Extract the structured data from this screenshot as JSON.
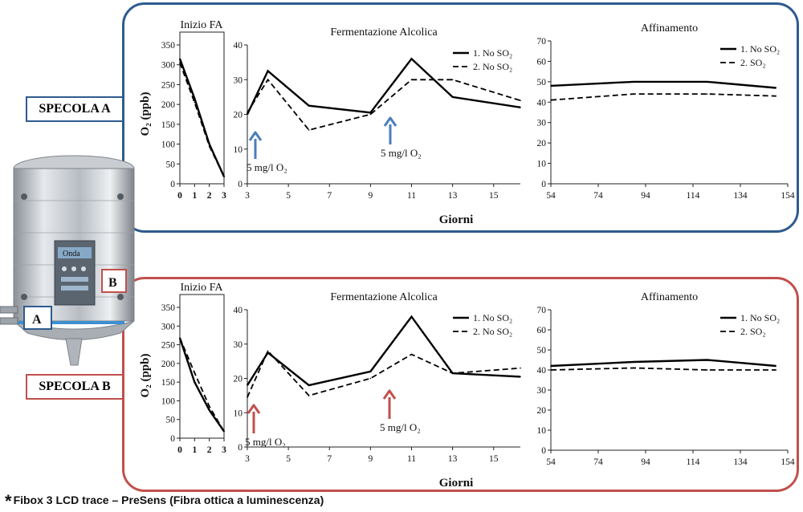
{
  "tags": {
    "a": "SPECOLA A",
    "b": "SPECOLA B"
  },
  "tank": {
    "brand": "Onda",
    "label_a": "A",
    "label_b": "B"
  },
  "footer": {
    "star": "*",
    "text": "Fibox 3 LCD trace – PreSens (Fibra ottica a luminescenza)"
  },
  "panels": [
    {
      "id": "a",
      "ylabel": "O₂ (ppb)",
      "xlabel": "Giorni",
      "arrow_color": "#4a7ebb",
      "annotations": [
        "5 mg/l O₂",
        "5 mg/l O₂"
      ],
      "charts": [
        {
          "title": "Inizio FA",
          "ylim": [
            0,
            350
          ],
          "yticks": [
            0,
            50,
            100,
            150,
            200,
            250,
            300,
            350
          ],
          "xticks": [
            0,
            1,
            2,
            3
          ],
          "xlim": [
            0,
            3
          ],
          "series": [
            {
              "style": "solid",
              "x": [
                0,
                1,
                2,
                3
              ],
              "y": [
                315,
                215,
                100,
                18
              ]
            },
            {
              "style": "dashed",
              "x": [
                0,
                1,
                2,
                3
              ],
              "y": [
                305,
                205,
                95,
                18
              ]
            }
          ]
        },
        {
          "title": "Fermentazione Alcolica",
          "ylim": [
            0,
            40
          ],
          "yticks": [
            0,
            10,
            20,
            30,
            40
          ],
          "xticks": [
            3,
            5,
            7,
            9,
            11,
            13,
            15
          ],
          "xlim": [
            3,
            16.3
          ],
          "legend": [
            "1. No SO₂",
            "2. No SO₂"
          ],
          "series": [
            {
              "style": "solid",
              "x": [
                3,
                4,
                6,
                9,
                11,
                13,
                16.3
              ],
              "y": [
                20,
                32.5,
                22.5,
                20.5,
                36,
                25,
                22
              ]
            },
            {
              "style": "dashed",
              "x": [
                3,
                4,
                6,
                9,
                11,
                13,
                16.3
              ],
              "y": [
                20.5,
                30,
                15.5,
                20,
                30,
                30,
                24
              ]
            }
          ]
        },
        {
          "title": "Affinamento",
          "ylim": [
            0,
            70
          ],
          "yticks": [
            0,
            10,
            20,
            30,
            40,
            50,
            60,
            70
          ],
          "xticks": [
            54,
            74,
            94,
            114,
            134,
            154
          ],
          "xlim": [
            54,
            154
          ],
          "legend": [
            "1. No SO₂",
            "2. SO₂"
          ],
          "series": [
            {
              "style": "solid",
              "x": [
                54,
                89,
                120,
                149
              ],
              "y": [
                48,
                50,
                50,
                47
              ]
            },
            {
              "style": "dashed",
              "x": [
                54,
                89,
                120,
                149
              ],
              "y": [
                41,
                44,
                44,
                43
              ]
            }
          ]
        }
      ]
    },
    {
      "id": "b",
      "ylabel": "O₂ (ppb)",
      "xlabel": "Giorni",
      "arrow_color": "#c0504d",
      "annotations": [
        "5 mg/l O₂",
        "5 mg/l O₂"
      ],
      "charts": [
        {
          "title": "Inizio FA",
          "ylim": [
            0,
            350
          ],
          "yticks": [
            0,
            50,
            100,
            150,
            200,
            250,
            300,
            350
          ],
          "xticks": [
            0,
            1,
            2,
            3
          ],
          "xlim": [
            0,
            3
          ],
          "series": [
            {
              "style": "solid",
              "x": [
                0,
                1,
                2,
                3
              ],
              "y": [
                268,
                150,
                75,
                18
              ]
            },
            {
              "style": "dashed",
              "x": [
                0,
                1,
                2,
                3
              ],
              "y": [
                268,
                175,
                85,
                18
              ]
            }
          ]
        },
        {
          "title": "Fermentazione Alcolica",
          "ylim": [
            0,
            40
          ],
          "yticks": [
            0,
            10,
            20,
            30,
            40
          ],
          "xticks": [
            3,
            5,
            7,
            9,
            11,
            13,
            15
          ],
          "xlim": [
            3,
            16.3
          ],
          "legend": [
            "1. No SO₂",
            "2. No SO₂"
          ],
          "series": [
            {
              "style": "solid",
              "x": [
                3,
                4,
                6,
                9,
                11,
                13,
                16.3
              ],
              "y": [
                18,
                27.5,
                18,
                22,
                38,
                21.5,
                20.5
              ]
            },
            {
              "style": "dashed",
              "x": [
                3,
                4,
                6,
                9,
                11,
                13,
                16.3
              ],
              "y": [
                14.5,
                28,
                15,
                20,
                27,
                21.5,
                23
              ]
            }
          ]
        },
        {
          "title": "Affinamento",
          "ylim": [
            0,
            70
          ],
          "yticks": [
            0,
            10,
            20,
            30,
            40,
            50,
            60,
            70
          ],
          "xticks": [
            54,
            74,
            94,
            114,
            134,
            154
          ],
          "xlim": [
            54,
            154
          ],
          "legend": [
            "1. No SO₂",
            "2. SO₂"
          ],
          "series": [
            {
              "style": "solid",
              "x": [
                54,
                89,
                120,
                149
              ],
              "y": [
                42,
                44,
                45,
                42
              ]
            },
            {
              "style": "dashed",
              "x": [
                54,
                89,
                120,
                149
              ],
              "y": [
                40,
                41,
                40,
                40
              ]
            }
          ]
        }
      ]
    }
  ],
  "chart_data": [
    {
      "type": "line",
      "title": "Inizio FA",
      "ylabel": "O₂ (ppb)",
      "xlim": [
        0,
        3
      ],
      "ylim": [
        0,
        350
      ],
      "x": [
        0,
        1,
        2,
        3
      ],
      "series": [
        {
          "values": [
            315,
            215,
            100,
            18
          ]
        },
        {
          "values": [
            305,
            205,
            95,
            18
          ]
        }
      ]
    },
    {
      "type": "line",
      "title": "Fermentazione Alcolica",
      "xlabel": "Giorni",
      "xlim": [
        3,
        16.3
      ],
      "ylim": [
        0,
        40
      ],
      "x": [
        3,
        4,
        6,
        9,
        11,
        13,
        16.3
      ],
      "series": [
        {
          "name": "1. No SO₂",
          "values": [
            20,
            32.5,
            22.5,
            20.5,
            36,
            25,
            22
          ]
        },
        {
          "name": "2. No SO₂",
          "values": [
            20.5,
            30,
            15.5,
            20,
            30,
            30,
            24
          ]
        }
      ]
    },
    {
      "type": "line",
      "title": "Affinamento",
      "xlim": [
        54,
        154
      ],
      "ylim": [
        0,
        70
      ],
      "x": [
        54,
        89,
        120,
        149
      ],
      "series": [
        {
          "name": "1. No SO₂",
          "values": [
            48,
            50,
            50,
            47
          ]
        },
        {
          "name": "2. SO₂",
          "values": [
            41,
            44,
            44,
            43
          ]
        }
      ]
    },
    {
      "type": "line",
      "title": "Inizio FA",
      "ylabel": "O₂ (ppb)",
      "xlim": [
        0,
        3
      ],
      "ylim": [
        0,
        350
      ],
      "x": [
        0,
        1,
        2,
        3
      ],
      "series": [
        {
          "values": [
            268,
            150,
            75,
            18
          ]
        },
        {
          "values": [
            268,
            175,
            85,
            18
          ]
        }
      ]
    },
    {
      "type": "line",
      "title": "Fermentazione Alcolica",
      "xlabel": "Giorni",
      "xlim": [
        3,
        16.3
      ],
      "ylim": [
        0,
        40
      ],
      "x": [
        3,
        4,
        6,
        9,
        11,
        13,
        16.3
      ],
      "series": [
        {
          "name": "1. No SO₂",
          "values": [
            18,
            27.5,
            18,
            22,
            38,
            21.5,
            20.5
          ]
        },
        {
          "name": "2. No SO₂",
          "values": [
            14.5,
            28,
            15,
            20,
            27,
            21.5,
            23
          ]
        }
      ]
    },
    {
      "type": "line",
      "title": "Affinamento",
      "xlim": [
        54,
        154
      ],
      "ylim": [
        0,
        70
      ],
      "x": [
        54,
        89,
        120,
        149
      ],
      "series": [
        {
          "name": "1. No SO₂",
          "values": [
            42,
            44,
            45,
            42
          ]
        },
        {
          "name": "2. SO₂",
          "values": [
            40,
            41,
            40,
            40
          ]
        }
      ]
    }
  ]
}
